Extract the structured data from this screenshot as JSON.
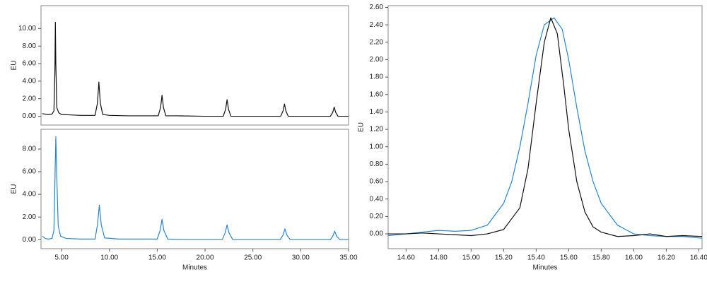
{
  "chart_data": [
    {
      "type": "line",
      "y_label": "EU",
      "xlim": [
        2.85,
        35.0
      ],
      "ylim": [
        -1.0,
        12.6
      ],
      "yticks": [
        {
          "value": 0,
          "label": "0.00"
        },
        {
          "value": 2,
          "label": "2.00"
        },
        {
          "value": 4,
          "label": "4.00"
        },
        {
          "value": 6,
          "label": "6.00"
        },
        {
          "value": 8,
          "label": "8.00"
        },
        {
          "value": 10,
          "label": "10.00"
        }
      ],
      "series": [
        {
          "color": "#111111",
          "x": [
            3.0,
            3.5,
            4.0,
            4.2,
            4.3,
            4.35,
            4.4,
            4.5,
            4.7,
            5.0,
            6.0,
            7.0,
            8.5,
            8.75,
            8.9,
            9.05,
            9.3,
            10,
            12,
            15.1,
            15.35,
            15.5,
            15.65,
            15.9,
            17,
            20,
            21.9,
            22.15,
            22.3,
            22.45,
            22.7,
            25,
            27.9,
            28.15,
            28.3,
            28.45,
            28.7,
            31,
            33.1,
            33.35,
            33.5,
            33.65,
            33.9,
            35.0
          ],
          "values": [
            0.3,
            0.2,
            0.25,
            0.6,
            5.0,
            10.7,
            6.0,
            1.0,
            0.4,
            0.2,
            0.15,
            0.1,
            0.1,
            1.5,
            3.9,
            1.5,
            0.2,
            0.1,
            0.05,
            0.05,
            1.0,
            2.4,
            1.0,
            0.05,
            0.05,
            0.0,
            0.0,
            0.8,
            1.9,
            0.8,
            0.0,
            0.0,
            0.0,
            0.6,
            1.4,
            0.6,
            0.0,
            0.0,
            0.0,
            0.45,
            1.05,
            0.45,
            0.0,
            0.0
          ]
        }
      ]
    },
    {
      "type": "line",
      "y_label": "EU",
      "x_label": "Minutes",
      "xlim": [
        2.85,
        35.0
      ],
      "ylim": [
        -0.8,
        9.75
      ],
      "xticks": [
        {
          "value": 5,
          "label": "5.00"
        },
        {
          "value": 10,
          "label": "10.00"
        },
        {
          "value": 15,
          "label": "15.00"
        },
        {
          "value": 20,
          "label": "20.00"
        },
        {
          "value": 25,
          "label": "25.00"
        },
        {
          "value": 30,
          "label": "30.00"
        },
        {
          "value": 35,
          "label": "35.00"
        }
      ],
      "yticks": [
        {
          "value": 0,
          "label": "0.00"
        },
        {
          "value": 2,
          "label": "2.00"
        },
        {
          "value": 4,
          "label": "4.00"
        },
        {
          "value": 6,
          "label": "6.00"
        },
        {
          "value": 8,
          "label": "8.00"
        }
      ],
      "series": [
        {
          "color": "#2a86c8",
          "x": [
            3.0,
            3.3,
            3.6,
            4.0,
            4.2,
            4.3,
            4.4,
            4.5,
            4.65,
            4.9,
            5.5,
            7,
            8.5,
            8.75,
            8.95,
            9.15,
            9.5,
            11,
            15.0,
            15.3,
            15.5,
            15.7,
            16.1,
            18,
            21.8,
            22.1,
            22.3,
            22.5,
            22.9,
            25,
            27.85,
            28.15,
            28.35,
            28.55,
            28.9,
            31,
            33.1,
            33.35,
            33.55,
            33.75,
            34.1,
            35.0
          ],
          "values": [
            0.3,
            0.1,
            0.05,
            0.1,
            0.8,
            5.0,
            9.1,
            5.5,
            1.2,
            0.3,
            0.1,
            0.05,
            0.05,
            1.3,
            3.05,
            1.3,
            0.15,
            0.05,
            0.05,
            0.8,
            1.8,
            0.8,
            0.05,
            0.0,
            0.0,
            0.6,
            1.3,
            0.6,
            0.0,
            0.0,
            0.0,
            0.4,
            0.95,
            0.4,
            0.0,
            0.0,
            0.0,
            0.3,
            0.75,
            0.3,
            0.0,
            0.0
          ]
        }
      ]
    },
    {
      "type": "line",
      "y_label": "EU",
      "x_label": "Minutes",
      "xlim": [
        14.49,
        16.42
      ],
      "ylim": [
        -0.17,
        2.62
      ],
      "xticks": [
        {
          "value": 14.6,
          "label": "14.60"
        },
        {
          "value": 14.8,
          "label": "14.80"
        },
        {
          "value": 15.0,
          "label": "15.00"
        },
        {
          "value": 15.2,
          "label": "15.20"
        },
        {
          "value": 15.4,
          "label": "15.40"
        },
        {
          "value": 15.6,
          "label": "15.60"
        },
        {
          "value": 15.8,
          "label": "15.80"
        },
        {
          "value": 16.0,
          "label": "16.00"
        },
        {
          "value": 16.2,
          "label": "16.20"
        },
        {
          "value": 16.4,
          "label": "16.40"
        }
      ],
      "yticks": [
        {
          "value": 0,
          "label": "0.00"
        },
        {
          "value": 0.2,
          "label": "0.20"
        },
        {
          "value": 0.4,
          "label": "0.40"
        },
        {
          "value": 0.6,
          "label": "0.60"
        },
        {
          "value": 0.8,
          "label": "0.80"
        },
        {
          "value": 1.0,
          "label": "1.00"
        },
        {
          "value": 1.2,
          "label": "1.20"
        },
        {
          "value": 1.4,
          "label": "1.40"
        },
        {
          "value": 1.6,
          "label": "1.60"
        },
        {
          "value": 1.8,
          "label": "1.80"
        },
        {
          "value": 2.0,
          "label": "2.00"
        },
        {
          "value": 2.2,
          "label": "2.20"
        },
        {
          "value": 2.4,
          "label": "2.40"
        },
        {
          "value": 2.6,
          "label": "2.60"
        }
      ],
      "series": [
        {
          "color": "#2a86c8",
          "x": [
            14.49,
            14.6,
            14.7,
            14.8,
            14.9,
            15.0,
            15.1,
            15.2,
            15.25,
            15.3,
            15.35,
            15.4,
            15.45,
            15.51,
            15.56,
            15.6,
            15.65,
            15.7,
            15.75,
            15.8,
            15.9,
            16.0,
            16.1,
            16.2,
            16.3,
            16.42
          ],
          "values": [
            -0.02,
            0.0,
            0.02,
            0.04,
            0.03,
            0.04,
            0.1,
            0.35,
            0.6,
            1.0,
            1.5,
            2.05,
            2.4,
            2.48,
            2.35,
            2.0,
            1.45,
            0.95,
            0.6,
            0.35,
            0.1,
            0.0,
            -0.02,
            -0.03,
            -0.03,
            -0.05
          ]
        },
        {
          "color": "#111111",
          "x": [
            14.49,
            14.6,
            14.7,
            14.8,
            14.9,
            15.0,
            15.1,
            15.2,
            15.3,
            15.35,
            15.4,
            15.45,
            15.49,
            15.53,
            15.57,
            15.6,
            15.65,
            15.7,
            15.75,
            15.8,
            15.9,
            16.0,
            16.1,
            16.2,
            16.3,
            16.42
          ],
          "values": [
            0.0,
            0.0,
            0.01,
            0.0,
            -0.01,
            -0.02,
            0.0,
            0.05,
            0.3,
            0.75,
            1.5,
            2.2,
            2.48,
            2.3,
            1.7,
            1.2,
            0.6,
            0.25,
            0.08,
            0.02,
            -0.03,
            -0.02,
            0.0,
            -0.03,
            -0.02,
            -0.03
          ]
        }
      ]
    }
  ]
}
